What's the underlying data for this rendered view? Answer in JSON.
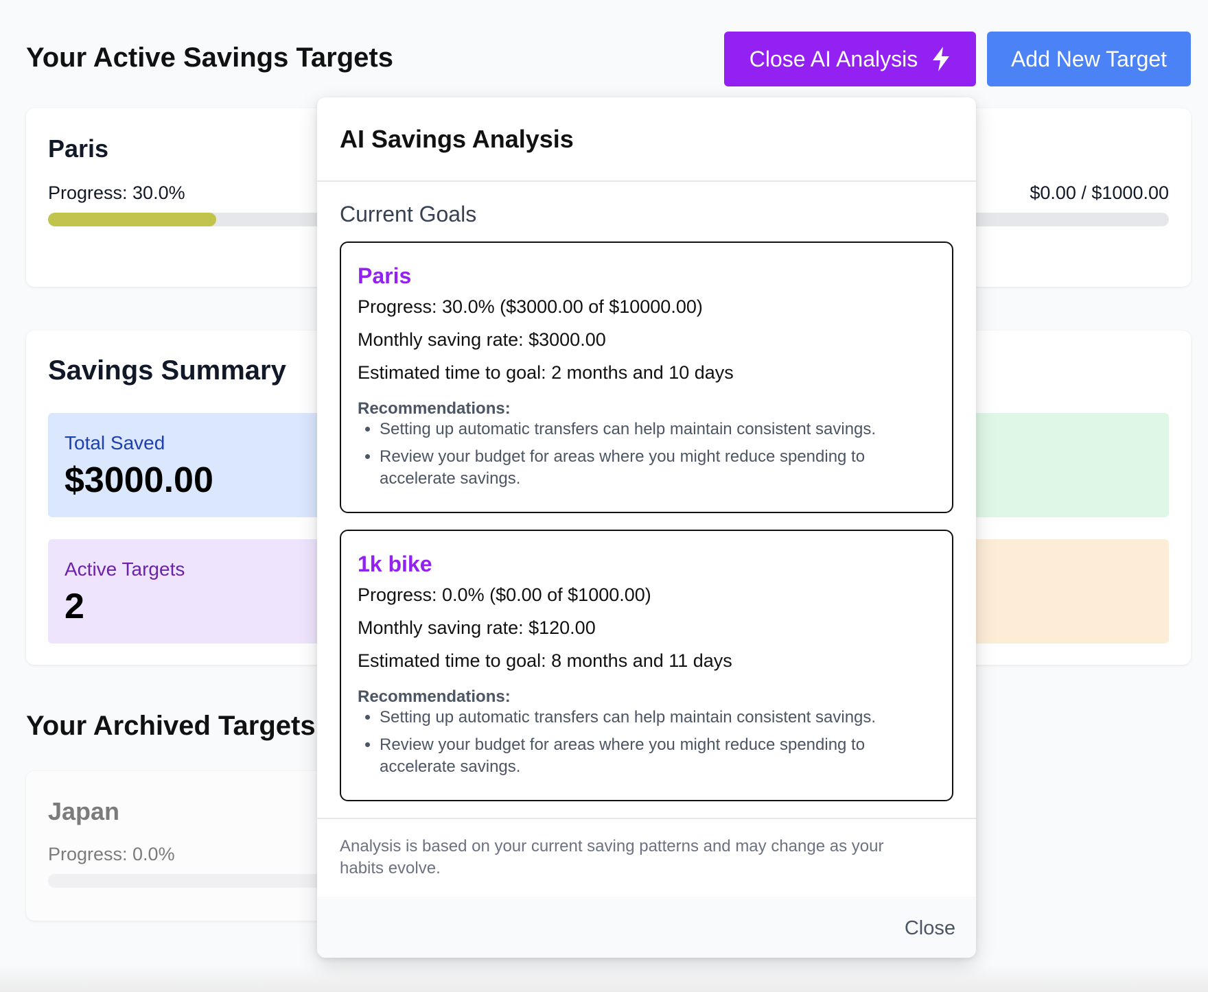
{
  "header": {
    "title": "Your Active Savings Targets",
    "ai_button_label": "Close AI Analysis",
    "add_button_label": "Add New Target",
    "ai_button_color": "#9321f2",
    "add_button_color": "#4b82f6"
  },
  "active_targets": [
    {
      "name": "Paris",
      "progress_label": "Progress: 30.0%",
      "progress_fraction": 0.3,
      "bar_color": "#c0c44d"
    },
    {
      "amount_label": "$0.00 / $1000.00"
    }
  ],
  "summary": {
    "title": "Savings Summary",
    "total_saved_label": "Total Saved",
    "total_saved_value": "$3000.00",
    "active_targets_label": "Active Targets",
    "active_targets_value": "2"
  },
  "archived": {
    "title": "Your Archived Targets",
    "items": [
      {
        "name": "Japan",
        "progress_label": "Progress: 0.0%",
        "progress_fraction": 0.0
      }
    ]
  },
  "modal": {
    "title": "AI Savings Analysis",
    "section_title": "Current Goals",
    "goals": [
      {
        "name": "Paris",
        "progress": "Progress: 30.0% ($3000.00 of $10000.00)",
        "rate": "Monthly saving rate: $3000.00",
        "eta": "Estimated time to goal: 2 months and 10 days",
        "rec_title": "Recommendations:",
        "recommendations": [
          "Setting up automatic transfers can help maintain consistent savings.",
          "Review your budget for areas where you might reduce spending to accelerate savings."
        ]
      },
      {
        "name": "1k bike",
        "progress": "Progress: 0.0% ($0.00 of $1000.00)",
        "rate": "Monthly saving rate: $120.00",
        "eta": "Estimated time to goal: 8 months and 11 days",
        "rec_title": "Recommendations:",
        "recommendations": [
          "Setting up automatic transfers can help maintain consistent savings.",
          "Review your budget for areas where you might reduce spending to accelerate savings."
        ]
      }
    ],
    "footer_note": "Analysis is based on your current saving patterns and may change as your habits evolve.",
    "close_label": "Close"
  },
  "icons": {
    "ai_button_icon": "lightning-bolt-icon"
  }
}
